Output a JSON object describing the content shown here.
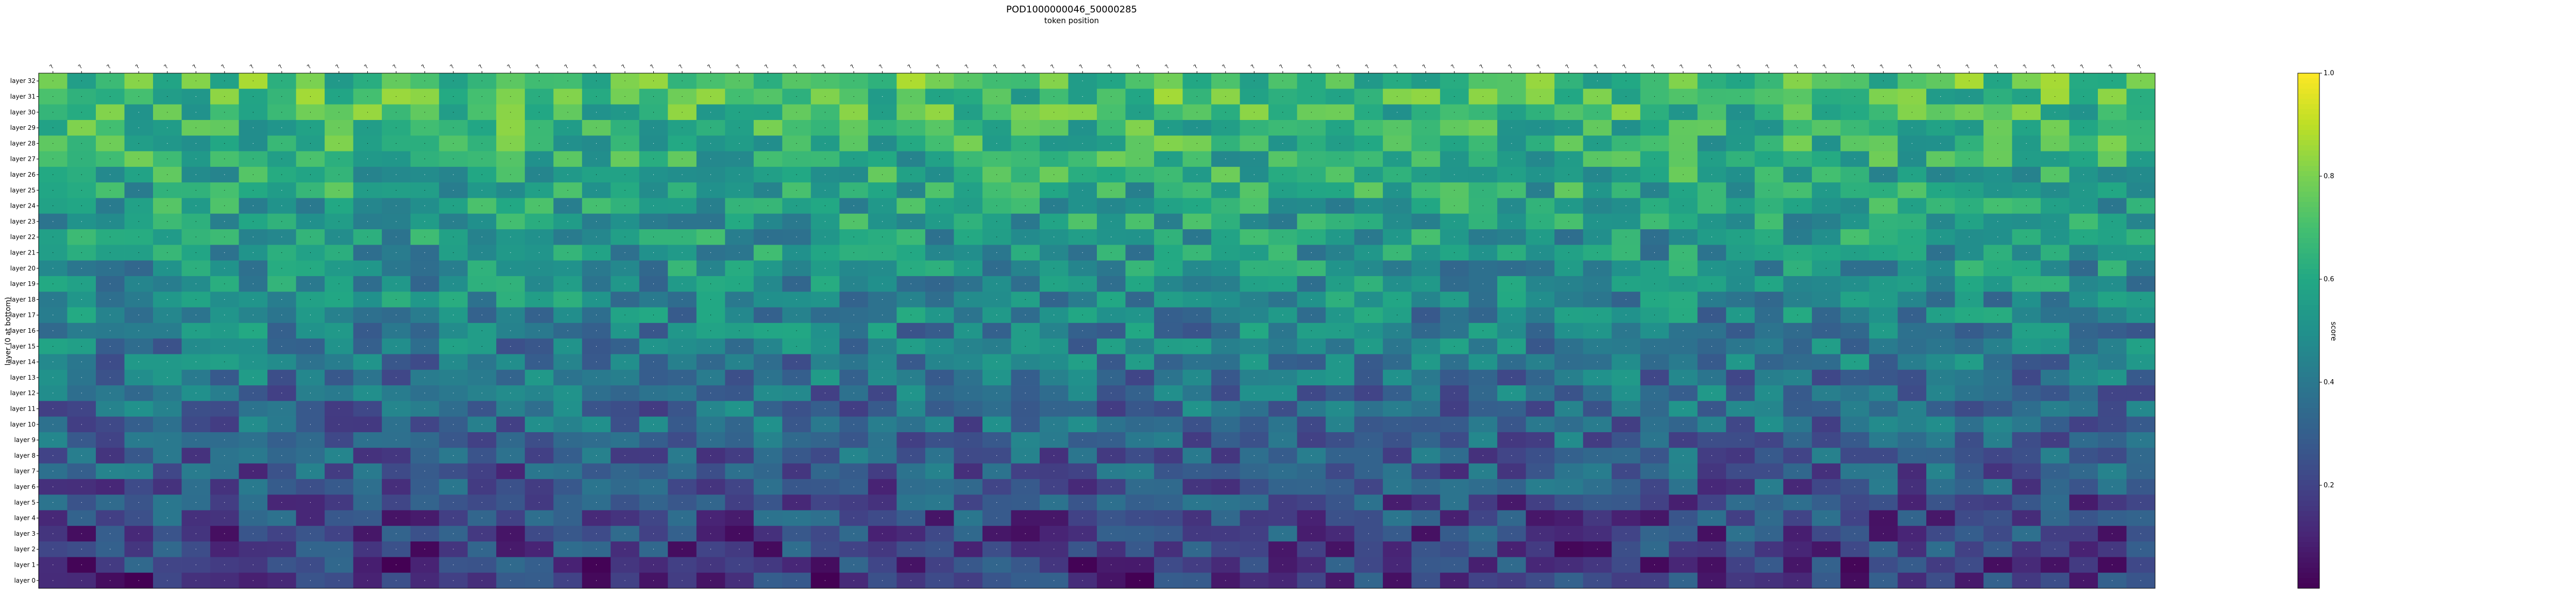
{
  "chart_data": {
    "type": "heatmap",
    "title": "POD1000000046_50000285",
    "subtitle": "token position",
    "ylabel": "layer (0 at bottom)",
    "colorbar": {
      "label": "score",
      "range": [
        0,
        1
      ],
      "ticks": [
        "0.2",
        "0.4",
        "0.6",
        "0.8",
        "1.0"
      ],
      "colormap": "viridis",
      "colors": [
        "#440154",
        "#482475",
        "#414487",
        "#355f8d",
        "#2a788e",
        "#21918c",
        "#22a884",
        "#44bf70",
        "#7ad151",
        "#bddf26",
        "#fde725"
      ]
    },
    "x_tokens": [
      "?",
      "?",
      "?",
      "?",
      "?",
      "?",
      "?",
      "?",
      "?",
      "?",
      "?",
      "?",
      "?",
      "?",
      "?",
      "?",
      "?",
      "?",
      "?",
      "?",
      "?",
      "?",
      "?",
      "?",
      "?",
      "?",
      "?",
      "?",
      "?",
      "?",
      "?",
      "?",
      "?",
      "?",
      "?",
      "?",
      "?",
      "?",
      "?",
      "?",
      "?",
      "?",
      "?",
      "?",
      "?",
      "?",
      "?",
      "?",
      "?",
      "?",
      "?",
      "?",
      "?",
      "?",
      "?",
      "?",
      "?",
      "?",
      "?",
      "?",
      "?",
      "?",
      "?",
      "?",
      "?",
      "?",
      "?",
      "?",
      "?",
      "?",
      "?",
      "?",
      "?",
      "?"
    ],
    "layers": [
      "layer 32",
      "layer 31",
      "layer 30",
      "layer 29",
      "layer 28",
      "layer 27",
      "layer 26",
      "layer 25",
      "layer 24",
      "layer 23",
      "layer 22",
      "layer 21",
      "layer 20",
      "layer 19",
      "layer 18",
      "layer 17",
      "layer 16",
      "layer 15",
      "layer 14",
      "layer 13",
      "layer 12",
      "layer 11",
      "layer 10",
      "layer 9",
      "layer 8",
      "layer 7",
      "layer 6",
      "layer 5",
      "layer 4",
      "layer 3",
      "layer 2",
      "layer 1",
      "layer 0"
    ],
    "n_columns": 74,
    "cell_words_note": "per-cell decoded tokens are illegible at this resolution; placeholders are used",
    "cell_word_placeholder": "·",
    "values": null
  }
}
